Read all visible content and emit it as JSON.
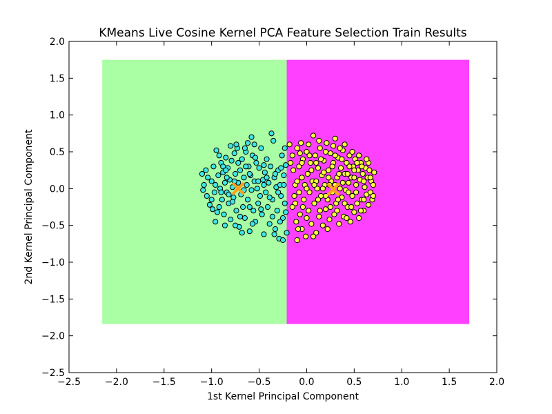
{
  "chart_data": {
    "type": "scatter",
    "title": "KMeans Live Cosine Kernel PCA Feature Selection Train Results",
    "xlabel": "1st Kernel Principal Component",
    "ylabel": "2nd Kernel Principal Component",
    "xlim": [
      -2.5,
      2.0
    ],
    "ylim": [
      -2.5,
      2.0
    ],
    "xticks": [
      -2.5,
      -2.0,
      -1.5,
      -1.0,
      -0.5,
      0.0,
      0.5,
      1.0,
      1.5,
      2.0
    ],
    "yticks": [
      -2.5,
      -2.0,
      -1.5,
      -1.0,
      -0.5,
      0.0,
      0.5,
      1.0,
      1.5,
      2.0
    ],
    "xtick_labels": [
      "−2.5",
      "−2.0",
      "−1.5",
      "−1.0",
      "−0.5",
      "0.0",
      "0.5",
      "1.0",
      "1.5",
      "2.0"
    ],
    "ytick_labels": [
      "−2.5",
      "−2.0",
      "−1.5",
      "−1.0",
      "−0.5",
      "0.0",
      "0.5",
      "1.0",
      "1.5",
      "2.0"
    ],
    "grid": false,
    "regions": [
      {
        "x_range": [
          -2.15,
          -0.21
        ],
        "y_range": [
          -1.84,
          1.75
        ],
        "color": "#aaffa4"
      },
      {
        "x_range": [
          -0.21,
          1.71
        ],
        "y_range": [
          -1.84,
          1.75
        ],
        "color": "#ff40ff"
      }
    ],
    "series": [
      {
        "color": "#3ee6e6",
        "points": [
          [
            -1.1,
            0.2
          ],
          [
            -1.08,
            0.05
          ],
          [
            -1.05,
            -0.1
          ],
          [
            -1.04,
            0.15
          ],
          [
            -1.02,
            -0.22
          ],
          [
            -1.0,
            0.1
          ],
          [
            -0.98,
            0.3
          ],
          [
            -0.97,
            -0.05
          ],
          [
            -0.96,
            -0.45
          ],
          [
            -0.95,
            0.52
          ],
          [
            -0.93,
            0.18
          ],
          [
            -0.92,
            -0.25
          ],
          [
            -0.91,
            0.0
          ],
          [
            -0.9,
            0.35
          ],
          [
            -0.89,
            -0.15
          ],
          [
            -0.88,
            0.22
          ],
          [
            -0.87,
            -0.35
          ],
          [
            -0.86,
            0.08
          ],
          [
            -0.85,
            0.42
          ],
          [
            -0.84,
            -0.05
          ],
          [
            -0.83,
            0.28
          ],
          [
            -0.82,
            -0.2
          ],
          [
            -0.81,
            0.12
          ],
          [
            -0.8,
            -0.42
          ],
          [
            -0.79,
            0.38
          ],
          [
            -0.78,
            0.02
          ],
          [
            -0.77,
            -0.12
          ],
          [
            -0.76,
            0.48
          ],
          [
            -0.75,
            0.2
          ],
          [
            -0.74,
            -0.3
          ],
          [
            -0.73,
            0.55
          ],
          [
            -0.72,
            0.08
          ],
          [
            -0.71,
            -0.52
          ],
          [
            -0.7,
            0.25
          ],
          [
            -0.69,
            -0.08
          ],
          [
            -0.68,
            0.4
          ],
          [
            -0.67,
            -0.25
          ],
          [
            -0.66,
            0.15
          ],
          [
            -0.65,
            -0.4
          ],
          [
            -0.64,
            0.5
          ],
          [
            -0.63,
            0.05
          ],
          [
            -0.62,
            -0.15
          ],
          [
            -0.61,
            0.3
          ],
          [
            -0.6,
            -0.58
          ],
          [
            -0.59,
            0.18
          ],
          [
            -0.58,
            -0.02
          ],
          [
            -0.57,
            0.45
          ],
          [
            -0.56,
            -0.3
          ],
          [
            -0.55,
            0.1
          ],
          [
            -0.54,
            -0.45
          ],
          [
            -0.53,
            0.35
          ],
          [
            -0.52,
            0.0
          ],
          [
            -0.51,
            -0.2
          ],
          [
            -0.5,
            0.28
          ],
          [
            -0.49,
            -0.1
          ],
          [
            -0.48,
            0.55
          ],
          [
            -0.47,
            -0.35
          ],
          [
            -0.46,
            0.12
          ],
          [
            -0.45,
            -0.62
          ],
          [
            -0.44,
            0.22
          ],
          [
            -0.43,
            -0.05
          ],
          [
            -0.42,
            0.4
          ],
          [
            -0.41,
            -0.25
          ],
          [
            -0.4,
            0.08
          ],
          [
            -0.39,
            -0.48
          ],
          [
            -0.38,
            0.3
          ],
          [
            -0.37,
            0.75
          ],
          [
            -0.36,
            -0.15
          ],
          [
            -0.35,
            0.65
          ],
          [
            -0.34,
            0.15
          ],
          [
            -0.33,
            -0.55
          ],
          [
            -0.32,
            0.02
          ],
          [
            -0.31,
            -0.3
          ],
          [
            -0.3,
            0.25
          ],
          [
            -0.29,
            -0.68
          ],
          [
            -0.28,
            0.05
          ],
          [
            -0.27,
            -0.1
          ],
          [
            -0.26,
            0.45
          ],
          [
            -0.25,
            -0.4
          ],
          [
            -0.24,
            0.18
          ],
          [
            -0.23,
            -0.2
          ],
          [
            -0.22,
            0.32
          ],
          [
            -0.21,
            -0.6
          ],
          [
            -0.23,
            0.55
          ],
          [
            -0.25,
            -0.7
          ],
          [
            -0.58,
            0.7
          ],
          [
            -0.62,
            0.62
          ],
          [
            -1.06,
            0.25
          ],
          [
            -0.99,
            -0.28
          ],
          [
            -0.92,
            0.45
          ],
          [
            -0.86,
            -0.5
          ],
          [
            -0.8,
            0.58
          ],
          [
            -0.74,
            0.6
          ],
          [
            -0.68,
            -0.6
          ],
          [
            -0.64,
            0.3
          ],
          [
            -0.9,
            -0.05
          ],
          [
            -0.84,
            0.15
          ],
          [
            -0.78,
            -0.18
          ],
          [
            -0.72,
            0.35
          ],
          [
            -0.66,
            -0.02
          ],
          [
            -0.6,
            0.2
          ],
          [
            -0.54,
            0.42
          ],
          [
            -0.48,
            -0.28
          ],
          [
            -0.42,
            0.15
          ],
          [
            -0.36,
            -0.38
          ],
          [
            -0.3,
            -0.05
          ],
          [
            -0.27,
            0.28
          ],
          [
            -0.34,
            -0.62
          ],
          [
            -1.0,
            -0.15
          ],
          [
            -0.96,
            0.05
          ],
          [
            -1.09,
            -0.02
          ],
          [
            -0.94,
            -0.32
          ],
          [
            -0.88,
            0.3
          ],
          [
            -0.82,
            -0.08
          ],
          [
            -0.76,
            0.1
          ],
          [
            -0.7,
            -0.38
          ],
          [
            -0.57,
            -0.48
          ],
          [
            -0.51,
            0.1
          ],
          [
            -0.45,
            0.32
          ],
          [
            -0.39,
            -0.12
          ],
          [
            -0.33,
            0.2
          ],
          [
            -0.28,
            -0.45
          ],
          [
            -0.24,
            0.05
          ],
          [
            -0.22,
            -0.32
          ],
          [
            -0.45,
            0.05
          ],
          [
            -0.55,
            0.6
          ],
          [
            -0.65,
            0.55
          ],
          [
            -0.85,
            0.25
          ],
          [
            -0.75,
            -0.5
          ],
          [
            -0.6,
            -0.25
          ]
        ]
      },
      {
        "color": "#ffff40",
        "points": [
          [
            -0.18,
            0.6
          ],
          [
            -0.15,
            0.45
          ],
          [
            -0.14,
            0.25
          ],
          [
            -0.12,
            0.05
          ],
          [
            -0.12,
            -0.2
          ],
          [
            -0.11,
            -0.45
          ],
          [
            -0.1,
            -0.7
          ],
          [
            -0.1,
            0.55
          ],
          [
            -0.08,
            0.3
          ],
          [
            -0.08,
            -0.05
          ],
          [
            -0.07,
            -0.35
          ],
          [
            -0.06,
            0.62
          ],
          [
            -0.05,
            0.15
          ],
          [
            -0.05,
            -0.55
          ],
          [
            -0.04,
            0.4
          ],
          [
            -0.03,
            -0.15
          ],
          [
            -0.02,
            0.05
          ],
          [
            -0.01,
            -0.65
          ],
          [
            0.0,
            0.5
          ],
          [
            0.01,
            0.2
          ],
          [
            0.02,
            -0.3
          ],
          [
            0.03,
            -0.05
          ],
          [
            0.04,
            0.35
          ],
          [
            0.05,
            -0.48
          ],
          [
            0.06,
            0.1
          ],
          [
            0.07,
            0.72
          ],
          [
            0.08,
            -0.2
          ],
          [
            0.09,
            0.45
          ],
          [
            0.1,
            -0.6
          ],
          [
            0.11,
            0.0
          ],
          [
            0.12,
            0.28
          ],
          [
            0.13,
            -0.38
          ],
          [
            0.14,
            0.55
          ],
          [
            0.15,
            -0.1
          ],
          [
            0.16,
            0.18
          ],
          [
            0.17,
            -0.5
          ],
          [
            0.18,
            0.38
          ],
          [
            0.19,
            0.05
          ],
          [
            0.2,
            -0.28
          ],
          [
            0.21,
            0.62
          ],
          [
            0.22,
            -0.15
          ],
          [
            0.23,
            0.25
          ],
          [
            0.24,
            -0.42
          ],
          [
            0.25,
            0.48
          ],
          [
            0.26,
            0.1
          ],
          [
            0.27,
            -0.05
          ],
          [
            0.28,
            0.35
          ],
          [
            0.29,
            -0.35
          ],
          [
            0.3,
            0.68
          ],
          [
            0.31,
            -0.2
          ],
          [
            0.32,
            0.15
          ],
          [
            0.33,
            0.42
          ],
          [
            0.34,
            -0.48
          ],
          [
            0.35,
            0.0
          ],
          [
            0.36,
            0.28
          ],
          [
            0.37,
            -0.12
          ],
          [
            0.38,
            0.52
          ],
          [
            0.39,
            -0.38
          ],
          [
            0.4,
            0.2
          ],
          [
            0.41,
            -0.02
          ],
          [
            0.42,
            0.35
          ],
          [
            0.43,
            -0.25
          ],
          [
            0.44,
            0.08
          ],
          [
            0.45,
            0.45
          ],
          [
            0.46,
            -0.45
          ],
          [
            0.47,
            0.15
          ],
          [
            0.48,
            -0.1
          ],
          [
            0.49,
            0.3
          ],
          [
            0.5,
            -0.32
          ],
          [
            0.51,
            0.4
          ],
          [
            0.52,
            0.05
          ],
          [
            0.53,
            -0.2
          ],
          [
            0.54,
            0.25
          ],
          [
            0.55,
            -0.4
          ],
          [
            0.56,
            0.12
          ],
          [
            0.57,
            0.35
          ],
          [
            0.58,
            -0.15
          ],
          [
            0.59,
            0.2
          ],
          [
            0.6,
            -0.3
          ],
          [
            0.61,
            0.02
          ],
          [
            0.62,
            0.28
          ],
          [
            0.63,
            -0.08
          ],
          [
            0.64,
            0.15
          ],
          [
            0.65,
            -0.22
          ],
          [
            0.66,
            0.25
          ],
          [
            0.67,
            -0.05
          ],
          [
            0.68,
            0.1
          ],
          [
            0.69,
            -0.15
          ],
          [
            0.7,
            0.05
          ],
          [
            0.71,
            0.22
          ],
          [
            0.0,
            -0.4
          ],
          [
            0.05,
            0.25
          ],
          [
            0.1,
            0.1
          ],
          [
            0.15,
            0.4
          ],
          [
            0.2,
            0.5
          ],
          [
            0.25,
            -0.25
          ],
          [
            0.3,
            0.05
          ],
          [
            0.35,
            0.55
          ],
          [
            0.4,
            -0.2
          ],
          [
            0.45,
            0.3
          ],
          [
            0.5,
            0.15
          ],
          [
            0.55,
            0.45
          ],
          [
            0.6,
            0.1
          ],
          [
            0.65,
            0.35
          ],
          [
            0.7,
            -0.1
          ],
          [
            -0.15,
            -0.25
          ],
          [
            -0.1,
            0.1
          ],
          [
            -0.05,
            0.35
          ],
          [
            0.02,
            0.6
          ],
          [
            0.08,
            0.05
          ],
          [
            0.12,
            -0.15
          ],
          [
            0.18,
            0.22
          ],
          [
            0.22,
            -0.55
          ],
          [
            0.28,
            0.58
          ],
          [
            0.32,
            -0.3
          ],
          [
            0.38,
            0.08
          ],
          [
            0.42,
            -0.4
          ],
          [
            0.48,
            0.5
          ],
          [
            0.52,
            -0.05
          ],
          [
            0.58,
            0.3
          ],
          [
            -0.17,
            0.35
          ],
          [
            -0.13,
            -0.1
          ],
          [
            -0.09,
            -0.55
          ],
          [
            -0.04,
            -0.25
          ],
          [
            0.03,
            0.45
          ],
          [
            0.07,
            -0.65
          ],
          [
            0.13,
            0.65
          ],
          [
            0.17,
            0.0
          ],
          [
            0.23,
            0.15
          ],
          [
            0.27,
            0.3
          ],
          [
            0.33,
            -0.15
          ],
          [
            0.37,
            0.4
          ],
          [
            0.43,
            0.2
          ],
          [
            0.47,
            -0.25
          ],
          [
            0.53,
            0.35
          ],
          [
            0.57,
            -0.3
          ],
          [
            0.63,
            0.4
          ],
          [
            0.67,
            0.15
          ],
          [
            0.1,
            0.35
          ],
          [
            0.2,
            -0.1
          ],
          [
            0.3,
            0.45
          ],
          [
            0.4,
            0.6
          ],
          [
            0.5,
            0.25
          ],
          [
            0.6,
            -0.15
          ],
          [
            0.0,
            0.0
          ],
          [
            -0.07,
            0.48
          ],
          [
            0.14,
            -0.3
          ],
          [
            0.24,
            0.05
          ],
          [
            0.34,
            0.2
          ],
          [
            0.44,
            -0.05
          ]
        ]
      },
      {
        "color": "#ff9f1a",
        "marker": "x",
        "points": [
          [
            -0.72,
            0.0
          ],
          [
            0.28,
            -0.01
          ]
        ]
      }
    ]
  }
}
